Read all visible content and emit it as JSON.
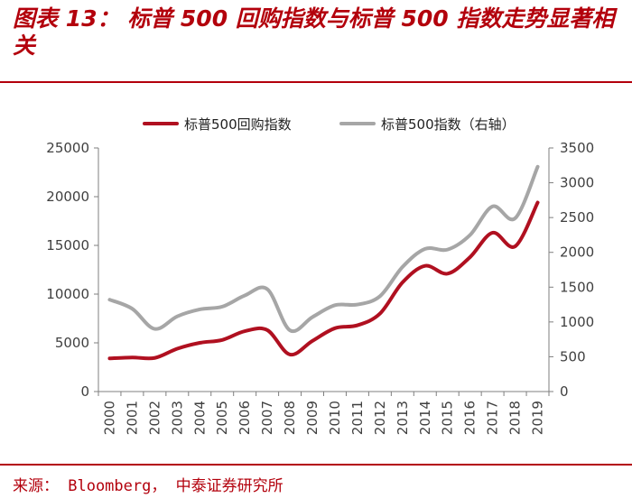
{
  "header": {
    "title": "图表 13： 标普 500 回购指数与标普 500 指数走势显著相关"
  },
  "footer": {
    "source": "来源： Bloomberg， 中泰证券研究所"
  },
  "colors": {
    "brand": "#b3000c",
    "series_buyback": "#b01020",
    "series_index": "#a6a6a6",
    "axis": "#7f7f7f"
  },
  "chart_data": {
    "type": "line",
    "title": "",
    "x": [
      "2000",
      "2001",
      "2002",
      "2003",
      "2004",
      "2005",
      "2006",
      "2007",
      "2008",
      "2009",
      "2010",
      "2011",
      "2012",
      "2013",
      "2014",
      "2015",
      "2016",
      "2017",
      "2018",
      "2019"
    ],
    "series": [
      {
        "name": "标普500回购指数",
        "axis": "left",
        "values": [
          3400,
          3500,
          3450,
          4400,
          5000,
          5300,
          6200,
          6300,
          3800,
          5200,
          6500,
          6800,
          8000,
          11200,
          12900,
          12100,
          13800,
          16300,
          14900,
          19400
        ]
      },
      {
        "name": "标普500指数（右轴）",
        "axis": "right",
        "values": [
          1320,
          1190,
          900,
          1080,
          1180,
          1220,
          1380,
          1470,
          880,
          1070,
          1240,
          1250,
          1370,
          1790,
          2050,
          2040,
          2250,
          2660,
          2490,
          3230
        ]
      }
    ],
    "y_left": {
      "ylim": [
        0,
        25000
      ],
      "ticks": [
        "0",
        "5000",
        "10000",
        "15000",
        "20000",
        "25000"
      ]
    },
    "y_right": {
      "ylim": [
        0,
        3500
      ],
      "ticks": [
        "0",
        "500",
        "1000",
        "1500",
        "2000",
        "2500",
        "3000",
        "3500"
      ]
    },
    "xlabel": "",
    "ylabel": "",
    "legend": {
      "placement": "top-center",
      "entries": [
        "标普500回购指数",
        "标普500指数（右轴）"
      ]
    },
    "grid": false
  }
}
